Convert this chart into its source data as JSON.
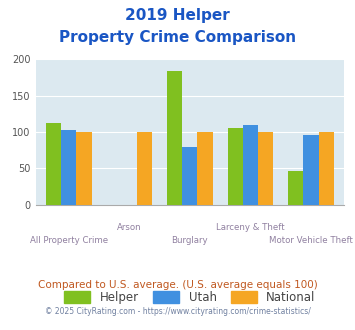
{
  "title_line1": "2019 Helper",
  "title_line2": "Property Crime Comparison",
  "categories": [
    "All Property Crime",
    "Arson",
    "Burglary",
    "Larceny & Theft",
    "Motor Vehicle Theft"
  ],
  "category_labels_row1": [
    "",
    "Arson",
    "",
    "Larceny & Theft",
    ""
  ],
  "category_labels_row2": [
    "All Property Crime",
    "",
    "Burglary",
    "",
    "Motor Vehicle Theft"
  ],
  "helper_values": [
    112,
    0,
    184,
    106,
    46
  ],
  "utah_values": [
    103,
    0,
    80,
    109,
    96
  ],
  "national_values": [
    100,
    100,
    100,
    100,
    100
  ],
  "helper_color": "#80c020",
  "utah_color": "#4090e0",
  "national_color": "#f5a623",
  "ylim": [
    0,
    200
  ],
  "yticks": [
    0,
    50,
    100,
    150,
    200
  ],
  "plot_bg_color": "#dce9f0",
  "title_color": "#1a56c4",
  "xlabel_color": "#9080a0",
  "footer_text": "Compared to U.S. average. (U.S. average equals 100)",
  "footer_color": "#c05820",
  "credit_text": "© 2025 CityRating.com - https://www.cityrating.com/crime-statistics/",
  "credit_color": "#7080a0",
  "legend_labels": [
    "Helper",
    "Utah",
    "National"
  ],
  "bar_width": 0.25
}
